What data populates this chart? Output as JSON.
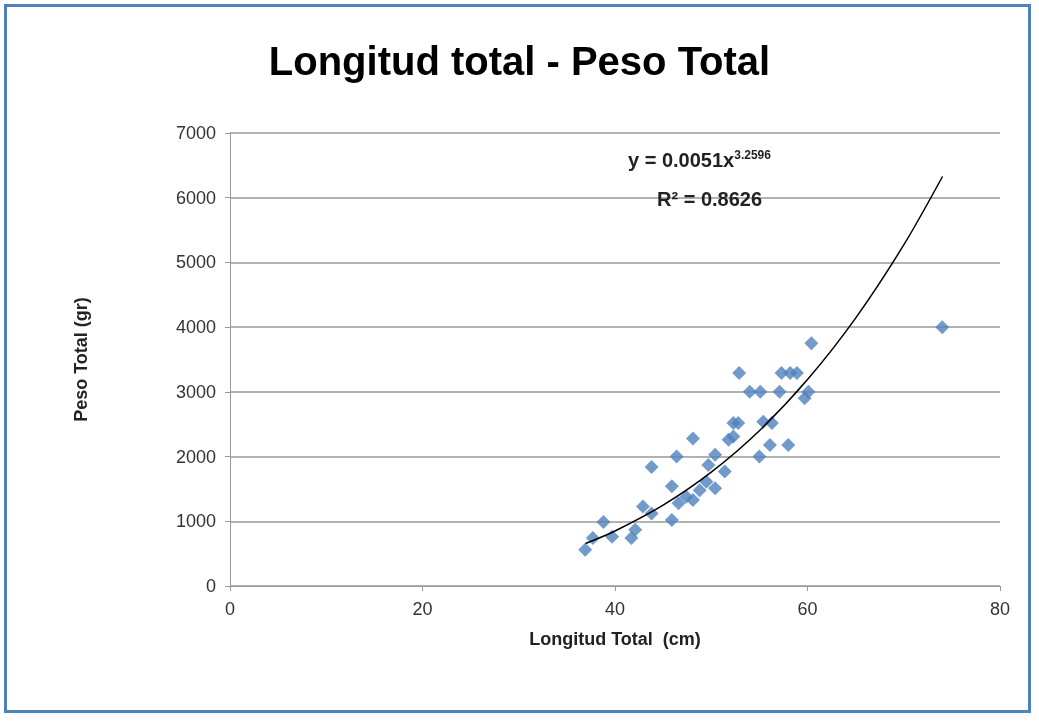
{
  "chart_data": {
    "type": "scatter",
    "title": "Longitud total - Peso Total",
    "xlabel": "Longitud Total  (cm)",
    "ylabel": "Peso Total (gr)",
    "annotations": [
      "y = 0.0051x$^{3.2596}$",
      "R² = 0.8626"
    ],
    "series": [
      {
        "color": "#4f81bd",
        "marker": "diamond",
        "x": [
          36.9,
          37.7,
          38.8,
          39.7,
          41.7,
          42.1,
          42.9,
          43.8,
          43.8,
          45.9,
          45.9,
          46.4,
          46.6,
          47.4,
          48.1,
          48.1,
          48.8,
          49.5,
          50.4,
          49.7,
          50.4,
          51.4,
          51.8,
          52.3,
          52.8,
          52.3,
          52.9,
          54.0,
          55.1,
          55.0,
          56.1,
          55.4,
          56.3,
          57.1,
          58.0,
          57.3,
          58.2,
          58.9,
          59.7,
          60.1,
          60.4,
          74
        ],
        "values": [
          560,
          740,
          990,
          760,
          740,
          870,
          1230,
          1120,
          1840,
          1020,
          1540,
          2000,
          1280,
          1380,
          1330,
          2280,
          1480,
          1610,
          1510,
          1870,
          2030,
          1770,
          2260,
          2520,
          2520,
          2310,
          3290,
          3000,
          3000,
          2000,
          2180,
          2540,
          2520,
          3000,
          2180,
          3290,
          3290,
          3290,
          2900,
          3000,
          3750,
          4000
        ]
      },
      {
        "type": "line",
        "color": "#000000",
        "marker": "none",
        "x": [
          37,
          40,
          45,
          50,
          55,
          60,
          65,
          70,
          74
        ],
        "values": [
          660,
          850,
          1250,
          1760,
          2400,
          3190,
          4140,
          5270,
          6320
        ]
      }
    ],
    "xlim": [
      0,
      80
    ],
    "xticks": [
      0,
      20,
      40,
      60,
      80
    ],
    "ylim": [
      0,
      7000
    ],
    "yticks": [
      0,
      1000,
      2000,
      3000,
      4000,
      5000,
      6000,
      7000
    ],
    "grid": "y"
  }
}
